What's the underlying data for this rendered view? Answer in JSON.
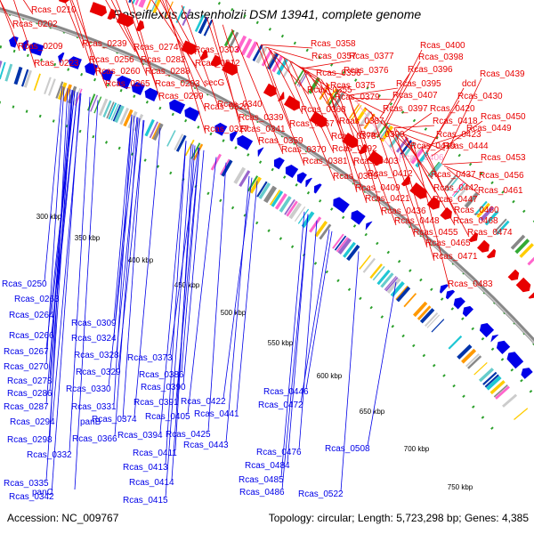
{
  "title": "Roseiflexus castenholzii DSM 13941, complete genome",
  "footer": {
    "accession": "Accession: NC_009767",
    "summary": "Topology: circular; Length: 5,723,298 bp; Genes: 4,385"
  },
  "colors": {
    "forward_strand": "#e80000",
    "reverse_strand": "#0000e8",
    "highlight_label": "#ff99cc",
    "backbone": "#888888",
    "dotted_ring": "#2ca02c"
  },
  "kbp_ticks": [
    "300 kbp",
    "350 kbp",
    "400 kbp",
    "450 kbp",
    "500 kbp",
    "550 kbp",
    "600 kbp",
    "650 kbp",
    "700 kbp",
    "750 kbp"
  ],
  "forward_labels": [
    "Rcas_0210",
    "Rcas_0202",
    "Rcas_0209",
    "Rcas_0223",
    "Rcas_0239",
    "Rcas_0256",
    "Rcas_0260",
    "Rcas_0265",
    "Rcas_0274",
    "Rcas_0282",
    "Rcas_0288",
    "Rcas_0293",
    "Rcas_0299",
    "Rcas_0303",
    "Rcas_0312",
    "secG",
    "Rcas_0320",
    "Rcas_0327",
    "Rcas_0340",
    "Rcas_0339",
    "Rcas_0341",
    "Rcas_0358",
    "Rcas_0357",
    "Rcas_0356",
    "Rcas_0355",
    "Rcas_0359",
    "Rcas_0368",
    "Rcas_0367",
    "Rcas_0370",
    "Rcas_0377",
    "Rcas_0376",
    "Rcas_0375",
    "Rcas_0379",
    "Rcas_0387",
    "Rcas_0378",
    "Rcas_0389",
    "Rcas_0381",
    "Rcas_0392",
    "Rcas_0399",
    "Rcas_0400",
    "Rcas_0398",
    "Rcas_0396",
    "Rcas_0395",
    "Rcas_0397",
    "Rcas_0407",
    "Rcas_0418",
    "Rcas_0403",
    "Rcas_0412",
    "Rcas_0409",
    "Rcas_0423",
    "Rcas_0419",
    "Rcas_0406",
    "Rcas_0421",
    "Rcas_0437",
    "Rcas_0436",
    "Rcas_0442",
    "Rcas_0447",
    "Rcas_0448",
    "Rcas_0455",
    "Rcas_0439",
    "dcd",
    "Rcas_0430",
    "Rcas_0420",
    "Rcas_0450",
    "Rcas_0449",
    "Rcas_0444",
    "Rcas_0453",
    "Rcas_0456",
    "Rcas_0461",
    "Rcas_0460",
    "Rcas_0468",
    "Rcas_0474",
    "Rcas_0465",
    "Rcas_0471",
    "Rcas_0483"
  ],
  "highlighted_label": "Rcas_0406",
  "reverse_labels": [
    "Rcas_0250",
    "Rcas_0263",
    "Rcas_0264",
    "Rcas_0266",
    "Rcas_0267",
    "Rcas_0270",
    "Rcas_0278",
    "Rcas_0286",
    "Rcas_0287",
    "Rcas_0294",
    "Rcas_0298",
    "Rcas_0332",
    "panC",
    "Rcas_0335",
    "Rcas_0342",
    "Rcas_0309",
    "Rcas_0324",
    "Rcas_0328",
    "Rcas_0329",
    "Rcas_0330",
    "Rcas_0331",
    "panB",
    "Rcas_0366",
    "Rcas_0374",
    "Rcas_0373",
    "Rcas_0386",
    "Rcas_0390",
    "Rcas_0391",
    "Rcas_0394",
    "Rcas_0405",
    "Rcas_0411",
    "Rcas_0413",
    "Rcas_0414",
    "Rcas_0415",
    "Rcas_0422",
    "Rcas_0425",
    "Rcas_0441",
    "Rcas_0443",
    "Rcas_0446",
    "Rcas_0472",
    "Rcas_0476",
    "Rcas_0484",
    "Rcas_0485",
    "Rcas_0486",
    "Rcas_0508",
    "Rcas_0522"
  ]
}
